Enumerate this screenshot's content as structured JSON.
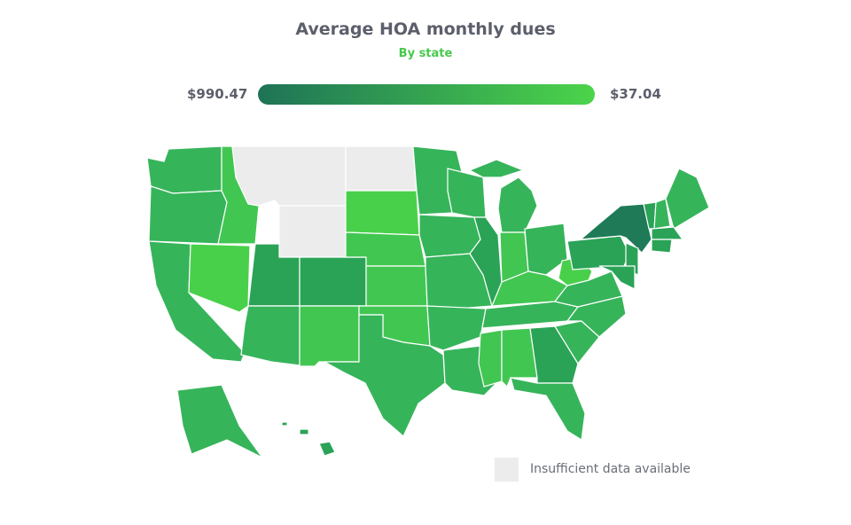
{
  "title": "Average HOA monthly dues",
  "subtitle": "By state",
  "legend": {
    "max_label": "$990.47",
    "min_label": "$37.04",
    "gradient_from": "#1e7357",
    "gradient_to": "#4cd44a",
    "no_data_label": "Insufficient data available",
    "no_data_color": "#ececec"
  },
  "shades": {
    "darkest": "#1f7a57",
    "darker": "#2aa357",
    "mid": "#36b45a",
    "light": "#42c652",
    "lightest": "#49d04b",
    "none": "#ececec"
  },
  "states": {
    "WA": "mid",
    "OR": "mid",
    "CA": "mid",
    "NV": "lightest",
    "ID": "light",
    "MT": "none",
    "WY": "none",
    "ND": "none",
    "UT": "darker",
    "CO": "darker",
    "AZ": "mid",
    "NM": "light",
    "SD": "lightest",
    "NE": "light",
    "KS": "light",
    "OK": "light",
    "TX": "mid",
    "MN": "mid",
    "IA": "mid",
    "MO": "mid",
    "AR": "mid",
    "LA": "mid",
    "WI": "mid",
    "IL": "darker",
    "MI": "mid",
    "IN": "light",
    "OH": "mid",
    "KY": "light",
    "TN": "mid",
    "MS": "light",
    "AL": "light",
    "GA": "darker",
    "FL": "mid",
    "SC": "mid",
    "NC": "mid",
    "VA": "mid",
    "WV": "lightest",
    "PA": "darker",
    "NY": "darkest",
    "VT": "darker",
    "NH": "mid",
    "ME": "mid",
    "MA": "darker",
    "CT": "darker",
    "NJ": "darker",
    "MD": "darker",
    "AK": "mid",
    "HI": "darker"
  }
}
